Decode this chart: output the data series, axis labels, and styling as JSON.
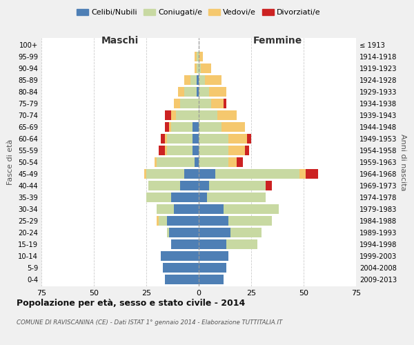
{
  "age_groups": [
    "0-4",
    "5-9",
    "10-14",
    "15-19",
    "20-24",
    "25-29",
    "30-34",
    "35-39",
    "40-44",
    "45-49",
    "50-54",
    "55-59",
    "60-64",
    "65-69",
    "70-74",
    "75-79",
    "80-84",
    "85-89",
    "90-94",
    "95-99",
    "100+"
  ],
  "birth_years": [
    "2009-2013",
    "2004-2008",
    "1999-2003",
    "1994-1998",
    "1989-1993",
    "1984-1988",
    "1979-1983",
    "1974-1978",
    "1969-1973",
    "1964-1968",
    "1959-1963",
    "1954-1958",
    "1949-1953",
    "1944-1948",
    "1939-1943",
    "1934-1938",
    "1929-1933",
    "1924-1928",
    "1919-1923",
    "1914-1918",
    "≤ 1913"
  ],
  "maschi": {
    "celibi": [
      16,
      17,
      18,
      13,
      14,
      15,
      12,
      13,
      9,
      7,
      2,
      3,
      3,
      3,
      0,
      0,
      1,
      1,
      0,
      0,
      0
    ],
    "coniugati": [
      0,
      0,
      0,
      0,
      1,
      4,
      8,
      12,
      15,
      18,
      18,
      12,
      12,
      10,
      11,
      9,
      6,
      3,
      1,
      1,
      0
    ],
    "vedovi": [
      0,
      0,
      0,
      0,
      0,
      1,
      0,
      0,
      0,
      1,
      1,
      1,
      1,
      1,
      2,
      3,
      3,
      3,
      1,
      1,
      0
    ],
    "divorziati": [
      0,
      0,
      0,
      0,
      0,
      0,
      0,
      0,
      0,
      0,
      0,
      3,
      2,
      2,
      3,
      0,
      0,
      0,
      0,
      0,
      0
    ]
  },
  "femmine": {
    "nubili": [
      12,
      13,
      14,
      13,
      15,
      14,
      12,
      4,
      5,
      8,
      0,
      0,
      0,
      0,
      0,
      0,
      0,
      0,
      0,
      0,
      0
    ],
    "coniugate": [
      0,
      0,
      0,
      15,
      15,
      21,
      26,
      28,
      27,
      40,
      14,
      14,
      14,
      11,
      9,
      6,
      5,
      3,
      1,
      0,
      0
    ],
    "vedove": [
      0,
      0,
      0,
      0,
      0,
      0,
      0,
      0,
      0,
      3,
      4,
      8,
      9,
      11,
      9,
      6,
      8,
      8,
      5,
      2,
      0
    ],
    "divorziate": [
      0,
      0,
      0,
      0,
      0,
      0,
      0,
      0,
      3,
      6,
      3,
      2,
      2,
      0,
      0,
      1,
      0,
      0,
      0,
      0,
      0
    ]
  },
  "colors": {
    "celibi": "#4e7fb5",
    "coniugati": "#c8d9a2",
    "vedovi": "#f5c86e",
    "divorziati": "#cc2222"
  },
  "xlim": 75,
  "title": "Popolazione per età, sesso e stato civile - 2014",
  "subtitle": "COMUNE DI RAVISCANINA (CE) - Dati ISTAT 1° gennaio 2014 - Elaborazione TUTTITALIA.IT",
  "ylabel": "Fasce di età",
  "ylabel_right": "Anni di nascita",
  "xlabel_left": "Maschi",
  "xlabel_right": "Femmine",
  "bg_color": "#f0f0f0",
  "plot_bg": "#ffffff"
}
